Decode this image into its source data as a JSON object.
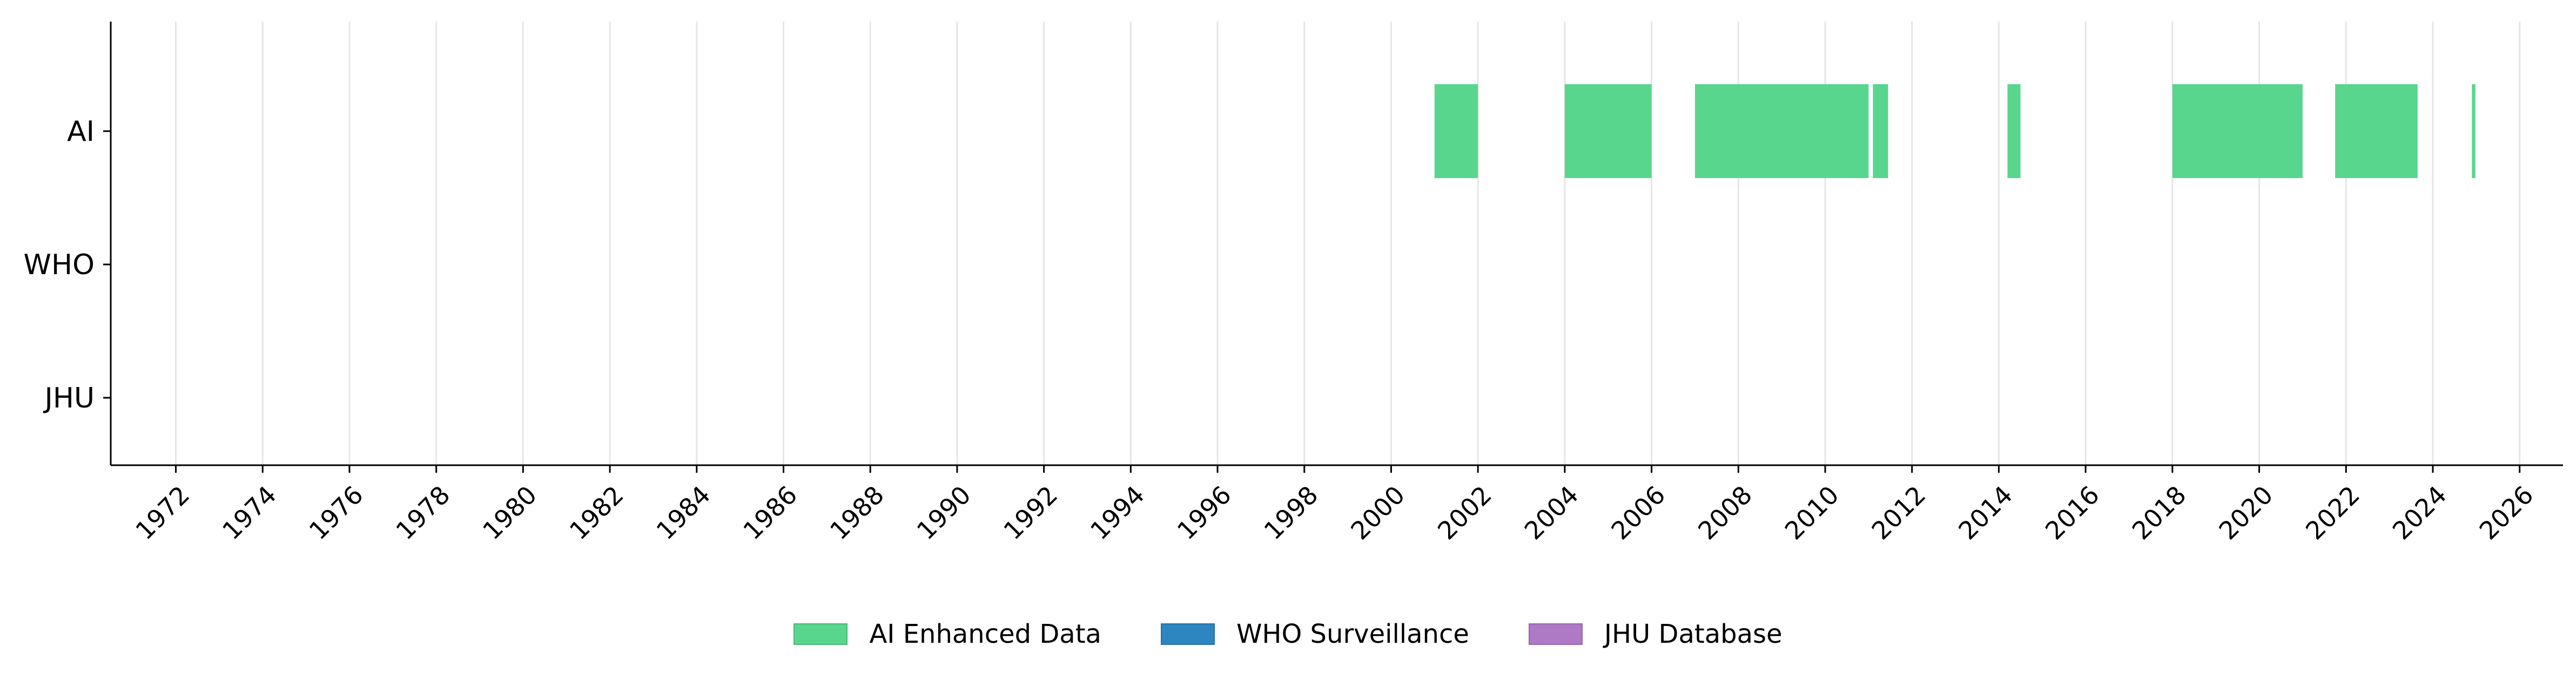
{
  "chart_data": {
    "type": "timeline",
    "categories": [
      "AI",
      "WHO",
      "JHU"
    ],
    "x_axis": {
      "range": [
        1970.5,
        2027.0
      ],
      "ticks": [
        1972,
        1974,
        1976,
        1978,
        1980,
        1982,
        1984,
        1986,
        1988,
        1990,
        1992,
        1994,
        1996,
        1998,
        2000,
        2002,
        2004,
        2006,
        2008,
        2010,
        2012,
        2014,
        2016,
        2018,
        2020,
        2022,
        2024,
        2026
      ],
      "tick_rotation": -45
    },
    "grid": "vertical",
    "series": [
      {
        "name": "AI Enhanced Data",
        "category": "AI",
        "color": "#58d68d",
        "intervals": [
          [
            2001.0,
            2002.0
          ],
          [
            2004.0,
            2006.0
          ],
          [
            2007.0,
            2011.0
          ],
          [
            2011.1,
            2011.45
          ],
          [
            2014.2,
            2014.5
          ],
          [
            2018.0,
            2021.0
          ],
          [
            2021.75,
            2023.65
          ],
          [
            2024.9,
            2024.98
          ]
        ]
      },
      {
        "name": "WHO Surveillance",
        "category": "WHO",
        "color": "#2e86c1",
        "intervals": []
      },
      {
        "name": "JHU Database",
        "category": "JHU",
        "color": "#af7ac5",
        "intervals": []
      }
    ],
    "legend_position": "bottom-center"
  }
}
